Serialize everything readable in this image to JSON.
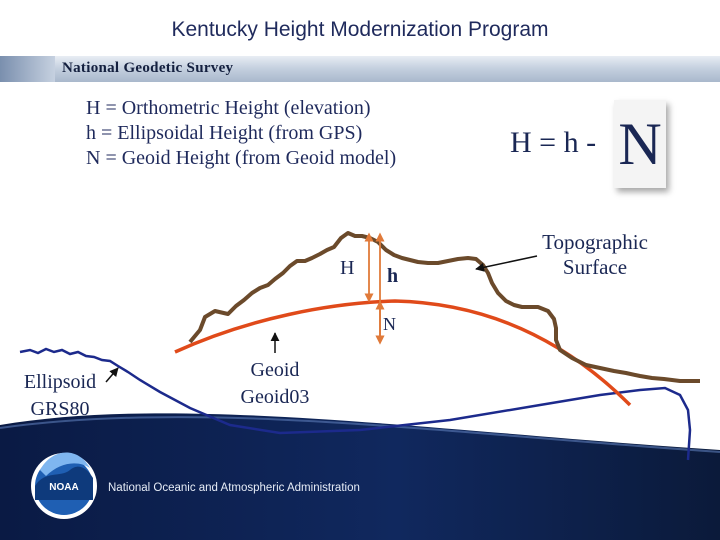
{
  "header": {
    "title": "Kentucky Height Modernization Program",
    "agency": "National Geodetic Survey"
  },
  "definitions": [
    "H = Orthometric Height (elevation)",
    "h = Ellipsoidal Height (from GPS)",
    "N = Geoid Height (from Geoid model)"
  ],
  "formula": {
    "left": "H = h -",
    "boxed": "N"
  },
  "labels": {
    "topographic_line1": "Topographic",
    "topographic_line2": "Surface",
    "ellipsoid_line1": "Ellipsoid",
    "ellipsoid_line2": "GRS80",
    "geoid_line1": "Geoid",
    "geoid_line2": "Geoid03",
    "H": "H",
    "h": "h",
    "N": "N"
  },
  "footer": {
    "logo_text": "NOAA",
    "organization": "National Oceanic and Atmospheric Administration"
  },
  "colors": {
    "topographic": "#6b4a2b",
    "ellipsoid": "#1c2a8c",
    "geoid": "#e04a1a",
    "arrow": "#e07a3a",
    "footer_bg": "#0b1a3a"
  }
}
